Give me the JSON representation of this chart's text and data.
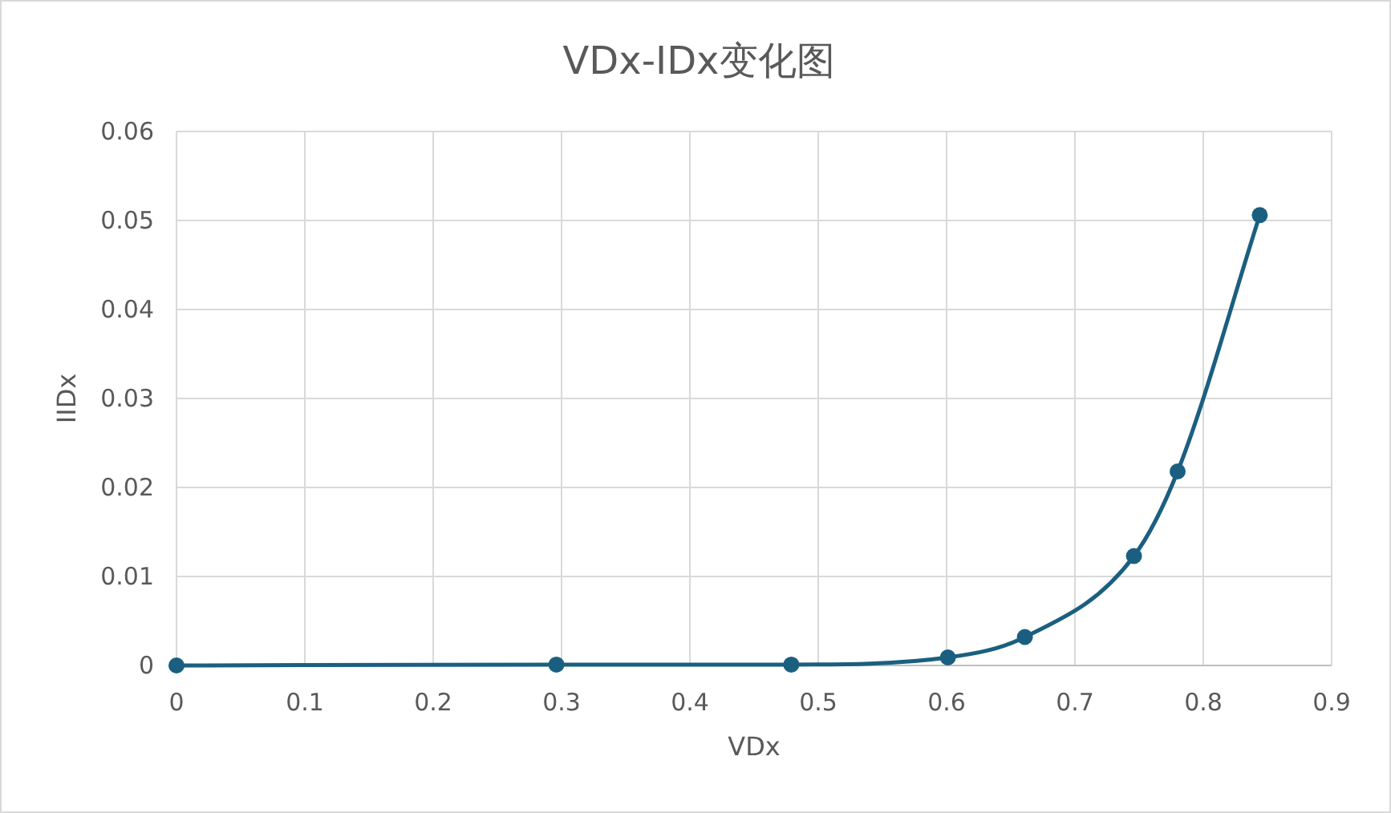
{
  "chart_data": {
    "type": "line",
    "title": "VDx-IDx变化图",
    "xlabel": "VDx",
    "ylabel": "IIDx",
    "x": [
      0,
      0.296,
      0.479,
      0.601,
      0.661,
      0.746,
      0.78,
      0.844
    ],
    "series": [
      {
        "color": "#1b5f80",
        "values": [
          0,
          0.0001,
          0.0001,
          0.0009,
          0.0032,
          0.0123,
          0.0218,
          0.0506
        ]
      }
    ],
    "xlim": [
      0,
      0.9
    ],
    "ylim": [
      0,
      0.06
    ],
    "xticks": [
      0,
      0.1,
      0.2,
      0.3,
      0.4,
      0.5,
      0.6,
      0.7,
      0.8,
      0.9
    ],
    "yticks": [
      0,
      0.01,
      0.02,
      0.03,
      0.04,
      0.05,
      0.06
    ],
    "grid": true,
    "marker": "circle"
  }
}
